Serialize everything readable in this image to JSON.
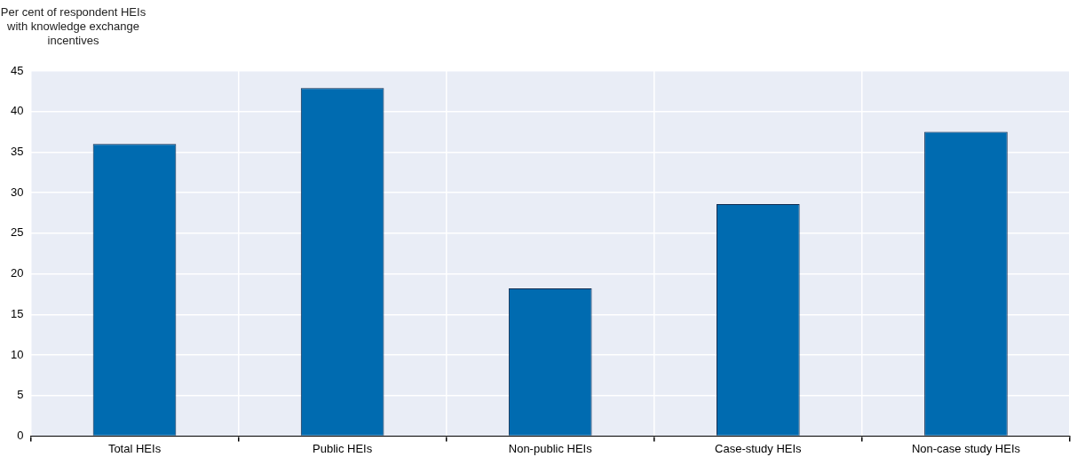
{
  "chart_data": {
    "type": "bar",
    "ylabel": "Per cent of respondent HEIs with knowledge exchange incentives",
    "categories": [
      "Total HEIs",
      "Public HEIs",
      "Non-public HEIs",
      "Case-study HEIs",
      "Non-case study HEIs"
    ],
    "values": [
      36,
      42.9,
      18.2,
      28.6,
      37.5
    ],
    "color": "#006bb0",
    "ylim": [
      0,
      45
    ],
    "yticks": [
      0,
      5,
      10,
      15,
      20,
      25,
      30,
      35,
      40,
      45
    ],
    "grid": true,
    "legend": false
  }
}
